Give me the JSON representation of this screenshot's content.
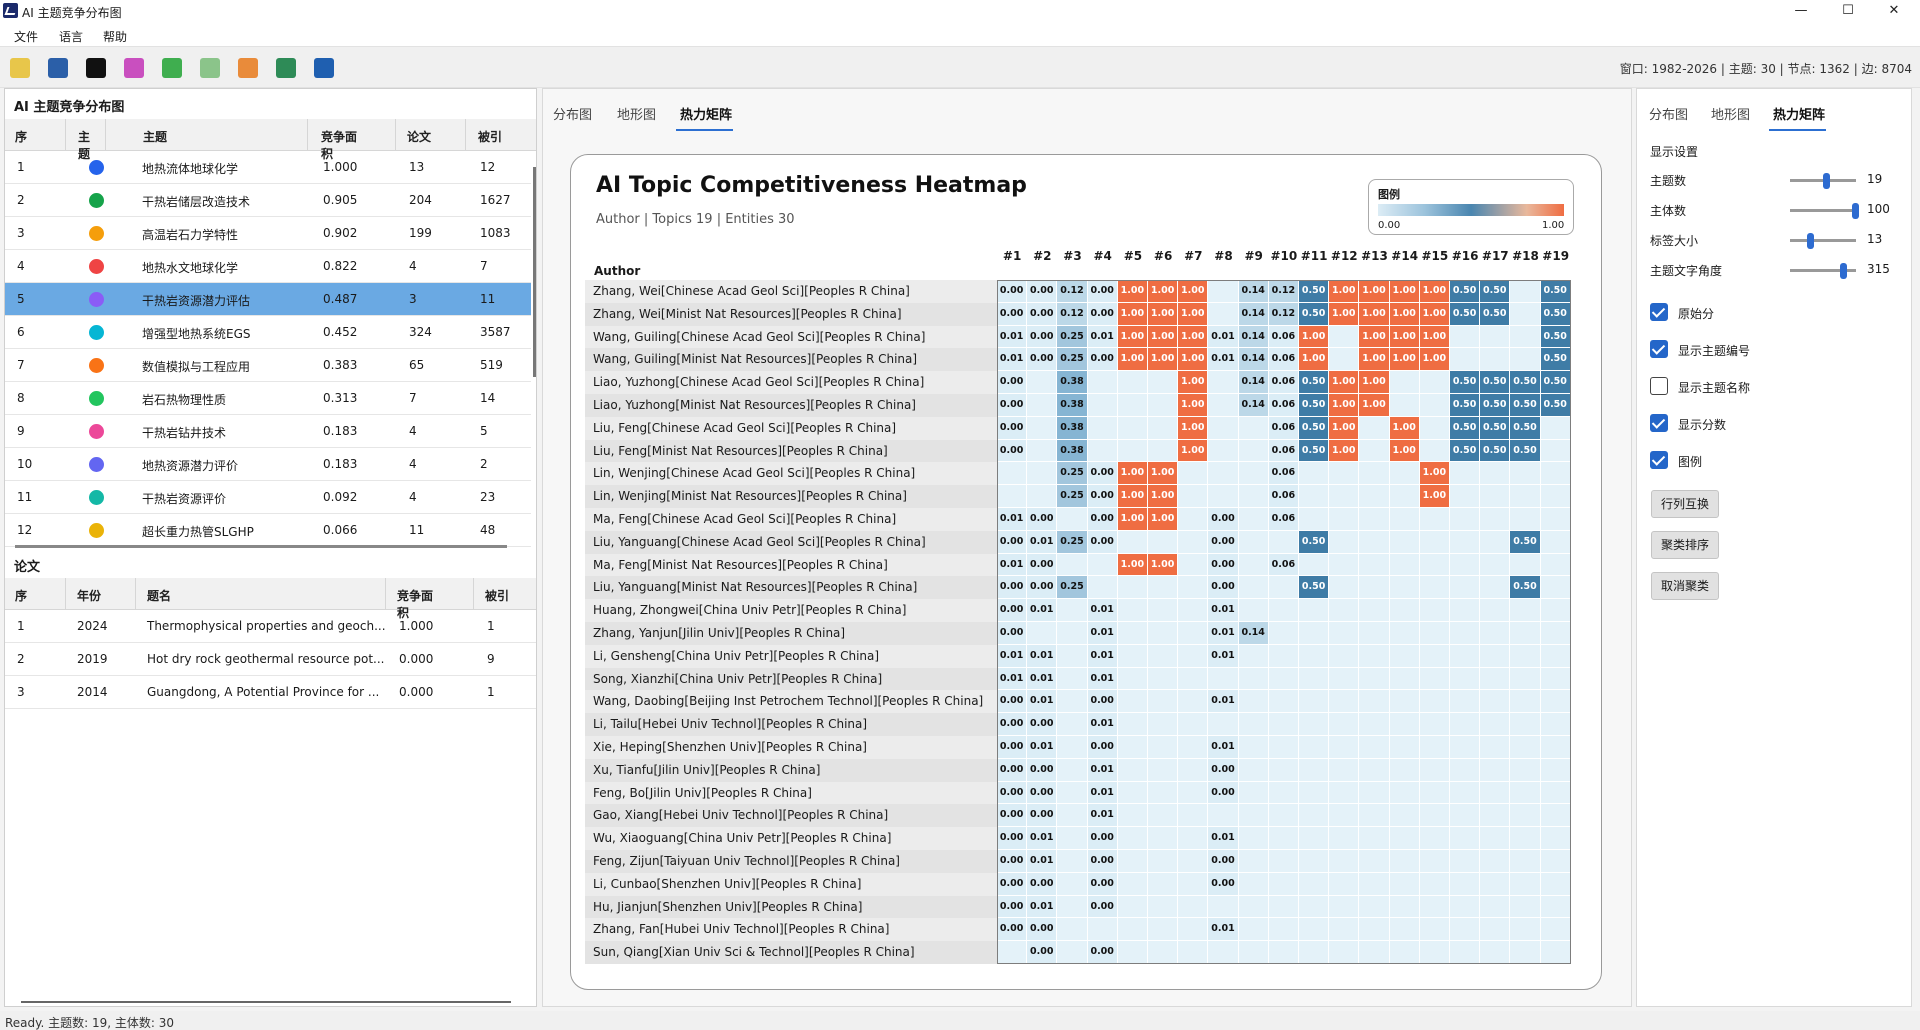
{
  "window": {
    "title": "AI 主题竞争分布图",
    "min": "—",
    "max": "☐",
    "close": "✕"
  },
  "menu": [
    "文件",
    "语言",
    "帮助"
  ],
  "toolbar": {
    "icons": [
      {
        "name": "open-folder-icon",
        "color": "#e8c64a"
      },
      {
        "name": "save-disk-icon",
        "color": "#2b5fa8"
      },
      {
        "name": "dark-star-icon",
        "color": "#111111"
      },
      {
        "name": "grid-tiles-icon",
        "color": "#c94fbf"
      },
      {
        "name": "green-square-icon",
        "color": "#3fae4f"
      },
      {
        "name": "leaf-cloud-icon",
        "color": "#8bc48a"
      },
      {
        "name": "palette-icon",
        "color": "#e98b3a"
      },
      {
        "name": "chart-grid-icon",
        "color": "#2e8b57"
      },
      {
        "name": "run-person-icon",
        "color": "#1f5fb0"
      }
    ],
    "status": "窗口: 1982-2026 | 主题: 30 | 节点: 1362 | 边: 8704"
  },
  "topics_panel": {
    "title": "AI 主题竞争分布图",
    "columns": [
      "序",
      "主题",
      "主题",
      "竞争面积",
      "论文",
      "被引"
    ],
    "rows": [
      {
        "idx": "1",
        "color": "#2563eb",
        "name": "地热流体地球化学",
        "score": "1.000",
        "papers": "13",
        "cites": "12"
      },
      {
        "idx": "2",
        "color": "#16a34a",
        "name": "干热岩储层改造技术",
        "score": "0.905",
        "papers": "204",
        "cites": "1627"
      },
      {
        "idx": "3",
        "color": "#f59e0b",
        "name": "高温岩石力学特性",
        "score": "0.902",
        "papers": "199",
        "cites": "1083"
      },
      {
        "idx": "4",
        "color": "#ef4444",
        "name": "地热水文地球化学",
        "score": "0.822",
        "papers": "4",
        "cites": "7"
      },
      {
        "idx": "5",
        "color": "#8b5cf6",
        "name": "干热岩资源潜力评估",
        "score": "0.487",
        "papers": "3",
        "cites": "11"
      },
      {
        "idx": "6",
        "color": "#06b6d4",
        "name": "增强型地热系统EGS",
        "score": "0.452",
        "papers": "324",
        "cites": "3587"
      },
      {
        "idx": "7",
        "color": "#f97316",
        "name": "数值模拟与工程应用",
        "score": "0.383",
        "papers": "65",
        "cites": "519"
      },
      {
        "idx": "8",
        "color": "#22c55e",
        "name": "岩石热物理性质",
        "score": "0.313",
        "papers": "7",
        "cites": "14"
      },
      {
        "idx": "9",
        "color": "#ec4899",
        "name": "干热岩钻井技术",
        "score": "0.183",
        "papers": "4",
        "cites": "5"
      },
      {
        "idx": "10",
        "color": "#6366f1",
        "name": "地热资源潜力评价",
        "score": "0.183",
        "papers": "4",
        "cites": "2"
      },
      {
        "idx": "11",
        "color": "#14b8a6",
        "name": "干热岩资源评价",
        "score": "0.092",
        "papers": "4",
        "cites": "23"
      },
      {
        "idx": "12",
        "color": "#eab308",
        "name": "超长重力热管SLGHP",
        "score": "0.066",
        "papers": "11",
        "cites": "48"
      }
    ]
  },
  "papers_panel": {
    "title": "论文",
    "columns": [
      "序",
      "年份",
      "题名",
      "竞争面积",
      "被引"
    ],
    "rows": [
      {
        "idx": "1",
        "year": "2024",
        "title": "Thermophysical properties and geoch...",
        "score": "1.000",
        "cites": "1"
      },
      {
        "idx": "2",
        "year": "2019",
        "title": "Hot dry rock geothermal resource pot...",
        "score": "0.000",
        "cites": "9"
      },
      {
        "idx": "3",
        "year": "2014",
        "title": "Guangdong, A Potential Province for ...",
        "score": "0.000",
        "cites": "1"
      }
    ]
  },
  "center_tabs": [
    "分布图",
    "地形图",
    "热力矩阵"
  ],
  "right_tabs": [
    "分布图",
    "地形图",
    "热力矩阵"
  ],
  "heatmap": {
    "title": "AI Topic Competitiveness Heatmap",
    "subtitle": "Author | Topics 19 | Entities 30",
    "legend_title": "图例",
    "legend_min": "0.00",
    "legend_max": "1.00",
    "row_header": "Author",
    "columns": [
      "#1",
      "#2",
      "#3",
      "#4",
      "#5",
      "#6",
      "#7",
      "#8",
      "#9",
      "#10",
      "#11",
      "#12",
      "#13",
      "#14",
      "#15",
      "#16",
      "#17",
      "#18",
      "#19"
    ],
    "rows": [
      {
        "label": "Zhang, Wei[Chinese Acad Geol Sci][Peoples R China]",
        "vals": [
          "0.00",
          "0.00",
          "0.12",
          "0.00",
          "1.00",
          "1.00",
          "1.00",
          "",
          "0.14",
          "0.12",
          "0.50",
          "1.00",
          "1.00",
          "1.00",
          "1.00",
          "0.50",
          "0.50",
          "",
          "0.50"
        ]
      },
      {
        "label": "Zhang, Wei[Minist Nat Resources][Peoples R China]",
        "vals": [
          "0.00",
          "0.00",
          "0.12",
          "0.00",
          "1.00",
          "1.00",
          "1.00",
          "",
          "0.14",
          "0.12",
          "0.50",
          "1.00",
          "1.00",
          "1.00",
          "1.00",
          "0.50",
          "0.50",
          "",
          "0.50"
        ]
      },
      {
        "label": "Wang, Guiling[Chinese Acad Geol Sci][Peoples R China]",
        "vals": [
          "0.01",
          "0.00",
          "0.25",
          "0.01",
          "1.00",
          "1.00",
          "1.00",
          "0.01",
          "0.14",
          "0.06",
          "1.00",
          "",
          "1.00",
          "1.00",
          "1.00",
          "",
          "",
          "",
          "0.50"
        ]
      },
      {
        "label": "Wang, Guiling[Minist Nat Resources][Peoples R China]",
        "vals": [
          "0.01",
          "0.00",
          "0.25",
          "0.00",
          "1.00",
          "1.00",
          "1.00",
          "0.01",
          "0.14",
          "0.06",
          "1.00",
          "",
          "1.00",
          "1.00",
          "1.00",
          "",
          "",
          "",
          "0.50"
        ]
      },
      {
        "label": "Liao, Yuzhong[Chinese Acad Geol Sci][Peoples R China]",
        "vals": [
          "0.00",
          "",
          "0.38",
          "",
          "",
          "",
          "1.00",
          "",
          "0.14",
          "0.06",
          "0.50",
          "1.00",
          "1.00",
          "",
          "",
          "0.50",
          "0.50",
          "0.50",
          "0.50"
        ]
      },
      {
        "label": "Liao, Yuzhong[Minist Nat Resources][Peoples R China]",
        "vals": [
          "0.00",
          "",
          "0.38",
          "",
          "",
          "",
          "1.00",
          "",
          "0.14",
          "0.06",
          "0.50",
          "1.00",
          "1.00",
          "",
          "",
          "0.50",
          "0.50",
          "0.50",
          "0.50"
        ]
      },
      {
        "label": "Liu, Feng[Chinese Acad Geol Sci][Peoples R China]",
        "vals": [
          "0.00",
          "",
          "0.38",
          "",
          "",
          "",
          "1.00",
          "",
          "",
          "0.06",
          "0.50",
          "1.00",
          "",
          "1.00",
          "",
          "0.50",
          "0.50",
          "0.50",
          ""
        ]
      },
      {
        "label": "Liu, Feng[Minist Nat Resources][Peoples R China]",
        "vals": [
          "0.00",
          "",
          "0.38",
          "",
          "",
          "",
          "1.00",
          "",
          "",
          "0.06",
          "0.50",
          "1.00",
          "",
          "1.00",
          "",
          "0.50",
          "0.50",
          "0.50",
          ""
        ]
      },
      {
        "label": "Lin, Wenjing[Chinese Acad Geol Sci][Peoples R China]",
        "vals": [
          "",
          "",
          "0.25",
          "0.00",
          "1.00",
          "1.00",
          "",
          "",
          "",
          "0.06",
          "",
          "",
          "",
          "",
          "1.00",
          "",
          "",
          "",
          ""
        ]
      },
      {
        "label": "Lin, Wenjing[Minist Nat Resources][Peoples R China]",
        "vals": [
          "",
          "",
          "0.25",
          "0.00",
          "1.00",
          "1.00",
          "",
          "",
          "",
          "0.06",
          "",
          "",
          "",
          "",
          "1.00",
          "",
          "",
          "",
          ""
        ]
      },
      {
        "label": "Ma, Feng[Chinese Acad Geol Sci][Peoples R China]",
        "vals": [
          "0.01",
          "0.00",
          "",
          "0.00",
          "1.00",
          "1.00",
          "",
          "0.00",
          "",
          "0.06",
          "",
          "",
          "",
          "",
          "",
          "",
          "",
          "",
          ""
        ]
      },
      {
        "label": "Liu, Yanguang[Chinese Acad Geol Sci][Peoples R China]",
        "vals": [
          "0.00",
          "0.01",
          "0.25",
          "0.00",
          "",
          "",
          "",
          "0.00",
          "",
          "",
          "0.50",
          "",
          "",
          "",
          "",
          "",
          "",
          "0.50",
          ""
        ]
      },
      {
        "label": "Ma, Feng[Minist Nat Resources][Peoples R China]",
        "vals": [
          "0.01",
          "0.00",
          "",
          "",
          "1.00",
          "1.00",
          "",
          "0.00",
          "",
          "0.06",
          "",
          "",
          "",
          "",
          "",
          "",
          "",
          "",
          ""
        ]
      },
      {
        "label": "Liu, Yanguang[Minist Nat Resources][Peoples R China]",
        "vals": [
          "0.00",
          "0.00",
          "0.25",
          "",
          "",
          "",
          "",
          "0.00",
          "",
          "",
          "0.50",
          "",
          "",
          "",
          "",
          "",
          "",
          "0.50",
          ""
        ]
      },
      {
        "label": "Huang, Zhongwei[China Univ Petr][Peoples R China]",
        "vals": [
          "0.00",
          "0.01",
          "",
          "0.01",
          "",
          "",
          "",
          "0.01",
          "",
          "",
          "",
          "",
          "",
          "",
          "",
          "",
          "",
          "",
          ""
        ]
      },
      {
        "label": "Zhang, Yanjun[Jilin Univ][Peoples R China]",
        "vals": [
          "0.00",
          "",
          "",
          "0.01",
          "",
          "",
          "",
          "0.01",
          "0.14",
          "",
          "",
          "",
          "",
          "",
          "",
          "",
          "",
          "",
          ""
        ]
      },
      {
        "label": "Li, Gensheng[China Univ Petr][Peoples R China]",
        "vals": [
          "0.01",
          "0.01",
          "",
          "0.01",
          "",
          "",
          "",
          "0.01",
          "",
          "",
          "",
          "",
          "",
          "",
          "",
          "",
          "",
          "",
          ""
        ]
      },
      {
        "label": "Song, Xianzhi[China Univ Petr][Peoples R China]",
        "vals": [
          "0.01",
          "0.01",
          "",
          "0.01",
          "",
          "",
          "",
          "",
          "",
          "",
          "",
          "",
          "",
          "",
          "",
          "",
          "",
          "",
          ""
        ]
      },
      {
        "label": "Wang, Daobing[Beijing Inst Petrochem Technol][Peoples R China]",
        "vals": [
          "0.00",
          "0.01",
          "",
          "0.00",
          "",
          "",
          "",
          "0.01",
          "",
          "",
          "",
          "",
          "",
          "",
          "",
          "",
          "",
          "",
          ""
        ]
      },
      {
        "label": "Li, Tailu[Hebei Univ Technol][Peoples R China]",
        "vals": [
          "0.00",
          "0.00",
          "",
          "0.01",
          "",
          "",
          "",
          "",
          "",
          "",
          "",
          "",
          "",
          "",
          "",
          "",
          "",
          "",
          ""
        ]
      },
      {
        "label": "Xie, Heping[Shenzhen Univ][Peoples R China]",
        "vals": [
          "0.00",
          "0.01",
          "",
          "0.00",
          "",
          "",
          "",
          "0.01",
          "",
          "",
          "",
          "",
          "",
          "",
          "",
          "",
          "",
          "",
          ""
        ]
      },
      {
        "label": "Xu, Tianfu[Jilin Univ][Peoples R China]",
        "vals": [
          "0.00",
          "0.00",
          "",
          "0.01",
          "",
          "",
          "",
          "0.00",
          "",
          "",
          "",
          "",
          "",
          "",
          "",
          "",
          "",
          "",
          ""
        ]
      },
      {
        "label": "Feng, Bo[Jilin Univ][Peoples R China]",
        "vals": [
          "0.00",
          "0.00",
          "",
          "0.01",
          "",
          "",
          "",
          "0.00",
          "",
          "",
          "",
          "",
          "",
          "",
          "",
          "",
          "",
          "",
          ""
        ]
      },
      {
        "label": "Gao, Xiang[Hebei Univ Technol][Peoples R China]",
        "vals": [
          "0.00",
          "0.00",
          "",
          "0.01",
          "",
          "",
          "",
          "",
          "",
          "",
          "",
          "",
          "",
          "",
          "",
          "",
          "",
          "",
          ""
        ]
      },
      {
        "label": "Wu, Xiaoguang[China Univ Petr][Peoples R China]",
        "vals": [
          "0.00",
          "0.01",
          "",
          "0.00",
          "",
          "",
          "",
          "0.01",
          "",
          "",
          "",
          "",
          "",
          "",
          "",
          "",
          "",
          "",
          ""
        ]
      },
      {
        "label": "Feng, Zijun[Taiyuan Univ Technol][Peoples R China]",
        "vals": [
          "0.00",
          "0.01",
          "",
          "0.00",
          "",
          "",
          "",
          "0.00",
          "",
          "",
          "",
          "",
          "",
          "",
          "",
          "",
          "",
          "",
          ""
        ]
      },
      {
        "label": "Li, Cunbao[Shenzhen Univ][Peoples R China]",
        "vals": [
          "0.00",
          "0.00",
          "",
          "0.00",
          "",
          "",
          "",
          "0.00",
          "",
          "",
          "",
          "",
          "",
          "",
          "",
          "",
          "",
          "",
          ""
        ]
      },
      {
        "label": "Hu, Jianjun[Shenzhen Univ][Peoples R China]",
        "vals": [
          "0.00",
          "0.01",
          "",
          "0.00",
          "",
          "",
          "",
          "",
          "",
          "",
          "",
          "",
          "",
          "",
          "",
          "",
          "",
          "",
          ""
        ]
      },
      {
        "label": "Zhang, Fan[Hubei Univ Technol][Peoples R China]",
        "vals": [
          "0.00",
          "0.00",
          "",
          "",
          "",
          "",
          "",
          "0.01",
          "",
          "",
          "",
          "",
          "",
          "",
          "",
          "",
          "",
          "",
          ""
        ]
      },
      {
        "label": "Sun, Qiang[Xian Univ Sci & Technol][Peoples R China]",
        "vals": [
          "",
          "0.00",
          "",
          "0.00",
          "",
          "",
          "",
          "",
          "",
          "",
          "",
          "",
          "",
          "",
          "",
          "",
          "",
          "",
          ""
        ]
      }
    ]
  },
  "settings": {
    "title": "显示设置",
    "sliders": [
      {
        "label": "主题数",
        "value": "19",
        "fraction": 0.55
      },
      {
        "label": "主体数",
        "value": "100",
        "fraction": 0.98
      },
      {
        "label": "标签大小",
        "value": "13",
        "fraction": 0.3
      },
      {
        "label": "主题文字角度",
        "value": "315",
        "fraction": 0.8
      }
    ],
    "checks": [
      {
        "label": "原始分",
        "checked": true
      },
      {
        "label": "显示主题编号",
        "checked": true
      },
      {
        "label": "显示主题名称",
        "checked": false
      },
      {
        "label": "显示分数",
        "checked": true
      },
      {
        "label": "图例",
        "checked": true
      }
    ],
    "buttons": [
      "行列互换",
      "聚类排序",
      "取消聚类"
    ]
  },
  "statusbar": "Ready. 主题数: 19, 主体数: 30"
}
